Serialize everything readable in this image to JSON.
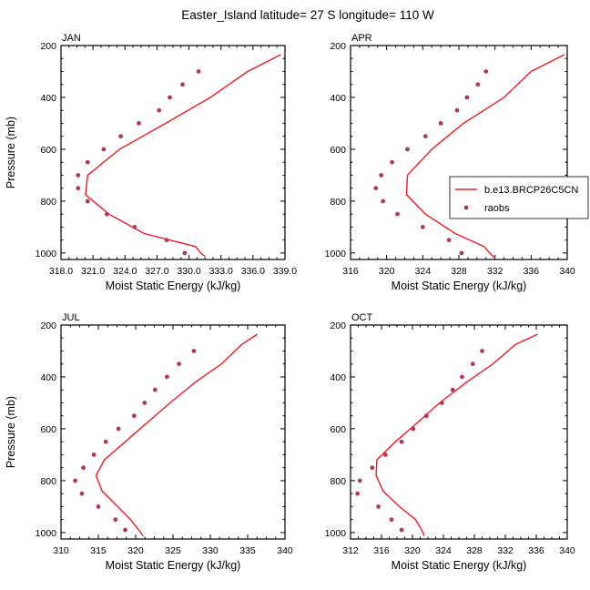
{
  "title": "Easter_Island  latitude= 27 S longitude= 110 W",
  "legend": {
    "model": "b.e13.BRCP26C5CN",
    "obs": "raobs"
  },
  "colors": {
    "model": "#ee1c25",
    "obs": "#b03a5b"
  },
  "chart_data": [
    {
      "type": "line",
      "title": "JAN",
      "xlabel": "Moist Static Energy (kJ/kg)",
      "ylabel": "Pressure (mb)",
      "xlim": [
        318,
        339
      ],
      "ylim": [
        200,
        1025
      ],
      "y_reversed": true,
      "xticks": [
        318,
        321,
        324,
        327,
        330,
        333,
        336,
        339
      ],
      "xtick_labels": [
        "318.0",
        "321.0",
        "324.0",
        "327.0",
        "330.0",
        "333.0",
        "336.0",
        "339.0"
      ],
      "yticks": [
        200,
        400,
        600,
        800,
        1000
      ],
      "ytick_labels": [
        "200",
        "400",
        "600",
        "800",
        "1000"
      ],
      "series": [
        {
          "name": "b.e13.BRCP26C5CN",
          "kind": "line",
          "points": [
            [
              338.6,
              235
            ],
            [
              335.5,
              300
            ],
            [
              332,
              400
            ],
            [
              327.8,
              500
            ],
            [
              323.5,
              600
            ],
            [
              320.5,
              700
            ],
            [
              320.3,
              775
            ],
            [
              322.5,
              850
            ],
            [
              325.8,
              925
            ],
            [
              330.6,
              975
            ],
            [
              331.1,
              1000
            ],
            [
              331.5,
              1013
            ]
          ]
        },
        {
          "name": "raobs",
          "kind": "scatter",
          "points": [
            [
              330.9,
              300
            ],
            [
              329.4,
              350
            ],
            [
              328.2,
              400
            ],
            [
              327.2,
              450
            ],
            [
              325.3,
              500
            ],
            [
              323.6,
              550
            ],
            [
              322,
              600
            ],
            [
              320.5,
              650
            ],
            [
              319.6,
              700
            ],
            [
              319.6,
              750
            ],
            [
              320.5,
              800
            ],
            [
              322.3,
              850
            ],
            [
              324.9,
              900
            ],
            [
              327.9,
              950
            ],
            [
              329.6,
              1000
            ]
          ]
        }
      ]
    },
    {
      "type": "line",
      "title": "APR",
      "xlabel": "Moist Static Energy (kJ/kg)",
      "ylabel": "Pressure (mb)",
      "xlim": [
        316,
        340
      ],
      "ylim": [
        200,
        1025
      ],
      "y_reversed": true,
      "xticks": [
        316,
        320,
        324,
        328,
        332,
        336,
        340
      ],
      "xtick_labels": [
        "316",
        "320",
        "324",
        "328",
        "332",
        "336",
        "340"
      ],
      "yticks": [
        200,
        400,
        600,
        800,
        1000
      ],
      "ytick_labels": [
        "200",
        "400",
        "600",
        "800",
        "1000"
      ],
      "series": [
        {
          "name": "b.e13.BRCP26C5CN",
          "kind": "line",
          "points": [
            [
              339.7,
              235
            ],
            [
              336,
              300
            ],
            [
              333,
              400
            ],
            [
              328.5,
              500
            ],
            [
              325,
              600
            ],
            [
              322.3,
              700
            ],
            [
              322.2,
              775
            ],
            [
              324.3,
              850
            ],
            [
              327.6,
              925
            ],
            [
              330.8,
              975
            ],
            [
              331.4,
              1000
            ],
            [
              332,
              1020
            ]
          ]
        },
        {
          "name": "raobs",
          "kind": "scatter",
          "points": [
            [
              331,
              300
            ],
            [
              330.1,
              350
            ],
            [
              328.9,
              400
            ],
            [
              327.8,
              450
            ],
            [
              326,
              500
            ],
            [
              324.3,
              550
            ],
            [
              322.3,
              600
            ],
            [
              320.6,
              650
            ],
            [
              319.4,
              700
            ],
            [
              318.8,
              750
            ],
            [
              319.6,
              800
            ],
            [
              321.2,
              850
            ],
            [
              324,
              900
            ],
            [
              326.9,
              950
            ],
            [
              328.3,
              1000
            ]
          ]
        }
      ]
    },
    {
      "type": "line",
      "title": "JUL",
      "xlabel": "Moist Static Energy (kJ/kg)",
      "ylabel": "Pressure (mb)",
      "xlim": [
        310,
        340
      ],
      "ylim": [
        200,
        1025
      ],
      "y_reversed": true,
      "xticks": [
        310,
        315,
        320,
        325,
        330,
        335,
        340
      ],
      "xtick_labels": [
        "310",
        "315",
        "320",
        "325",
        "330",
        "335",
        "340"
      ],
      "yticks": [
        200,
        400,
        600,
        800,
        1000
      ],
      "ytick_labels": [
        "200",
        "400",
        "600",
        "800",
        "1000"
      ],
      "series": [
        {
          "name": "b.e13.BRCP26C5CN",
          "kind": "line",
          "points": [
            [
              336.3,
              235
            ],
            [
              334.2,
              275
            ],
            [
              331.5,
              350
            ],
            [
              328,
              420
            ],
            [
              324.6,
              500
            ],
            [
              321.4,
              580
            ],
            [
              318.6,
              650
            ],
            [
              315.8,
              720
            ],
            [
              314.7,
              780
            ],
            [
              315.5,
              840
            ],
            [
              317.6,
              900
            ],
            [
              319.3,
              950
            ],
            [
              320.4,
              990
            ],
            [
              321,
              1013
            ]
          ]
        },
        {
          "name": "raobs",
          "kind": "scatter",
          "points": [
            [
              327.8,
              300
            ],
            [
              325.8,
              350
            ],
            [
              324.2,
              400
            ],
            [
              322.6,
              450
            ],
            [
              321.2,
              500
            ],
            [
              319.8,
              550
            ],
            [
              317.7,
              600
            ],
            [
              316,
              650
            ],
            [
              314.4,
              700
            ],
            [
              313,
              750
            ],
            [
              311.9,
              800
            ],
            [
              312.8,
              850
            ],
            [
              315,
              900
            ],
            [
              317.3,
              950
            ],
            [
              318.6,
              990
            ]
          ]
        }
      ]
    },
    {
      "type": "line",
      "title": "OCT",
      "xlabel": "Moist Static Energy (kJ/kg)",
      "ylabel": "Pressure (mb)",
      "xlim": [
        312,
        340
      ],
      "ylim": [
        200,
        1025
      ],
      "y_reversed": true,
      "xticks": [
        312,
        316,
        320,
        324,
        328,
        332,
        336,
        340
      ],
      "xtick_labels": [
        "312",
        "316",
        "320",
        "324",
        "328",
        "332",
        "336",
        "340"
      ],
      "yticks": [
        200,
        400,
        600,
        800,
        1000
      ],
      "ytick_labels": [
        "200",
        "400",
        "600",
        "800",
        "1000"
      ],
      "series": [
        {
          "name": "b.e13.BRCP26C5CN",
          "kind": "line",
          "points": [
            [
              336.2,
              235
            ],
            [
              333.3,
              275
            ],
            [
              330.4,
              350
            ],
            [
              327,
              420
            ],
            [
              323.5,
              500
            ],
            [
              320.5,
              580
            ],
            [
              317.8,
              650
            ],
            [
              315.4,
              720
            ],
            [
              315.3,
              780
            ],
            [
              316.2,
              840
            ],
            [
              318.3,
              900
            ],
            [
              320.4,
              950
            ],
            [
              321.2,
              990
            ],
            [
              321.5,
              1013
            ]
          ]
        },
        {
          "name": "raobs",
          "kind": "scatter",
          "points": [
            [
              329,
              300
            ],
            [
              327.8,
              350
            ],
            [
              326.4,
              400
            ],
            [
              325.2,
              450
            ],
            [
              323.8,
              500
            ],
            [
              321.8,
              550
            ],
            [
              320.1,
              600
            ],
            [
              318.6,
              650
            ],
            [
              316.5,
              700
            ],
            [
              314.8,
              750
            ],
            [
              313.2,
              800
            ],
            [
              312.9,
              850
            ],
            [
              315.6,
              900
            ],
            [
              317.3,
              950
            ],
            [
              318.6,
              990
            ]
          ]
        }
      ]
    }
  ]
}
